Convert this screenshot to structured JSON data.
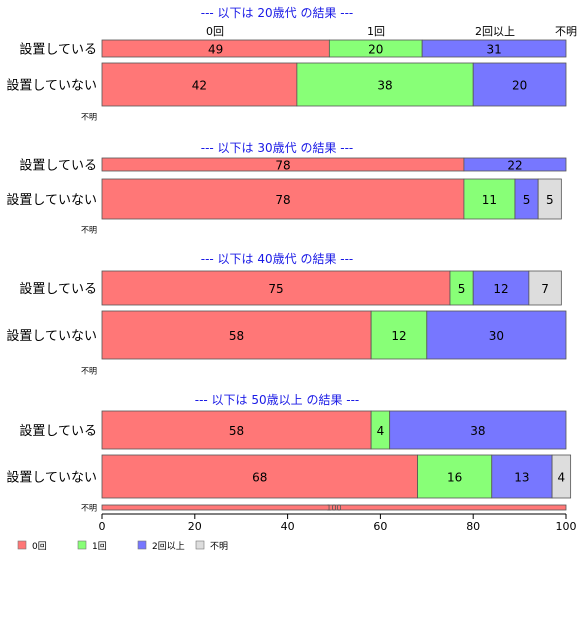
{
  "chart_data": {
    "type": "bar",
    "orientation": "horizontal",
    "stacked": true,
    "xlim": [
      0,
      100
    ],
    "x_ticks": [
      0,
      20,
      40,
      60,
      80,
      100
    ],
    "grid": false,
    "legend_position": "bottom-left",
    "categories_header": [
      "0回",
      "1回",
      "2回以上",
      "不明"
    ],
    "series": [
      {
        "name": "0回",
        "color": "#ff7777"
      },
      {
        "name": "1回",
        "color": "#88ff77"
      },
      {
        "name": "2回以上",
        "color": "#7777ff"
      },
      {
        "name": "不明",
        "color": "#dddddd"
      }
    ],
    "panels": [
      {
        "title": "--- 以下は 20歳代 の結果 ---",
        "rows": [
          {
            "label": "設置している",
            "values": [
              49,
              20,
              31,
              0
            ]
          },
          {
            "label": "設置していない",
            "values": [
              42,
              38,
              20,
              0
            ]
          },
          {
            "label": "不明",
            "values": [
              0,
              0,
              0,
              0
            ]
          }
        ]
      },
      {
        "title": "--- 以下は 30歳代 の結果 ---",
        "rows": [
          {
            "label": "設置している",
            "values": [
              78,
              0,
              22,
              0
            ]
          },
          {
            "label": "設置していない",
            "values": [
              78,
              11,
              5,
              5
            ]
          },
          {
            "label": "不明",
            "values": [
              0,
              0,
              0,
              0
            ]
          }
        ]
      },
      {
        "title": "--- 以下は 40歳代 の結果 ---",
        "rows": [
          {
            "label": "設置している",
            "values": [
              75,
              5,
              12,
              7
            ]
          },
          {
            "label": "設置していない",
            "values": [
              58,
              12,
              30,
              0
            ]
          },
          {
            "label": "不明",
            "values": [
              0,
              0,
              0,
              0
            ]
          }
        ]
      },
      {
        "title": "--- 以下は 50歳以上 の結果 ---",
        "rows": [
          {
            "label": "設置している",
            "values": [
              58,
              4,
              38,
              0
            ]
          },
          {
            "label": "設置していない",
            "values": [
              68,
              16,
              13,
              4
            ]
          },
          {
            "label": "不明",
            "values": [
              100,
              0,
              0,
              0
            ]
          }
        ]
      }
    ]
  }
}
